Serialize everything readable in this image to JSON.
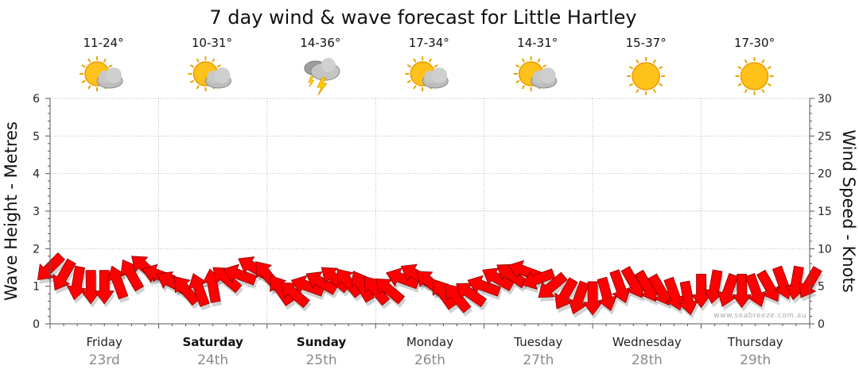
{
  "chart_data": {
    "type": "line",
    "title": "7 day wind & wave forecast for Little Hartley",
    "ylabel_left": "Wave Height - Metres",
    "ylabel_right": "Wind Speed - Knots",
    "y_left_ticks": [
      "0",
      "1",
      "2",
      "3",
      "4",
      "5",
      "6"
    ],
    "y_right_ticks": [
      "0",
      "5",
      "10",
      "15",
      "20",
      "25",
      "30"
    ],
    "ylim_left": [
      0,
      6
    ],
    "ylim_right": [
      0,
      30
    ],
    "grid": true,
    "credit": "www.seabreeze.com.au",
    "days": [
      {
        "day": "Friday",
        "date": "23rd",
        "temp": "11-24°",
        "weather": "partly-cloudy-icon",
        "bold": false
      },
      {
        "day": "Saturday",
        "date": "24th",
        "temp": "10-31°",
        "weather": "partly-cloudy-icon",
        "bold": true
      },
      {
        "day": "Sunday",
        "date": "25th",
        "temp": "14-36°",
        "weather": "thunderstorm-icon",
        "bold": true
      },
      {
        "day": "Monday",
        "date": "26th",
        "temp": "17-34°",
        "weather": "partly-cloudy-icon",
        "bold": false
      },
      {
        "day": "Tuesday",
        "date": "27th",
        "temp": "14-31°",
        "weather": "partly-cloudy-icon",
        "bold": false
      },
      {
        "day": "Wednesday",
        "date": "28th",
        "temp": "15-37°",
        "weather": "sunny-icon",
        "bold": false
      },
      {
        "day": "Thursday",
        "date": "29th",
        "temp": "17-30°",
        "weather": "sunny-icon",
        "bold": false
      }
    ],
    "series": [
      {
        "unit": "knots",
        "color": "#ff0000",
        "x_hours": [
          0,
          3,
          6,
          9,
          12,
          15,
          18,
          21,
          24,
          27,
          30,
          33,
          36,
          39,
          42,
          45,
          48,
          51,
          54,
          57,
          60,
          63,
          66,
          69,
          72,
          75,
          78,
          81,
          84,
          87,
          90,
          93,
          96,
          99,
          102,
          105,
          108,
          111,
          114,
          117,
          120,
          123,
          126,
          129,
          132,
          135,
          138,
          141,
          144,
          147,
          150,
          153,
          156,
          159,
          162,
          165,
          168
        ],
        "values": [
          7.5,
          6.5,
          5.5,
          5,
          5,
          5.5,
          6.5,
          7.5,
          6.5,
          5.5,
          4.5,
          4.5,
          5,
          6,
          6.5,
          7.5,
          6.5,
          4.5,
          4,
          5,
          5.5,
          6,
          5.5,
          5,
          4.5,
          4.5,
          6,
          6.5,
          5.5,
          4,
          3.5,
          4,
          5,
          6,
          6.5,
          7,
          6,
          5,
          4,
          3.5,
          3.5,
          4,
          5,
          5.5,
          5,
          4.5,
          4,
          3.5,
          4.5,
          5,
          4.5,
          4.5,
          4.5,
          5,
          5.5,
          5.5,
          5.5
        ],
        "directions_deg": [
          135,
          120,
          100,
          90,
          90,
          250,
          240,
          220,
          200,
          210,
          230,
          250,
          260,
          220,
          200,
          210,
          230,
          235,
          220,
          200,
          210,
          220,
          230,
          240,
          230,
          220,
          200,
          210,
          220,
          235,
          230,
          215,
          200,
          210,
          215,
          200,
          160,
          140,
          120,
          110,
          90,
          75,
          70,
          60,
          60,
          60,
          70,
          80,
          90,
          100,
          110,
          90,
          70,
          60,
          70,
          100,
          120
        ]
      }
    ]
  }
}
